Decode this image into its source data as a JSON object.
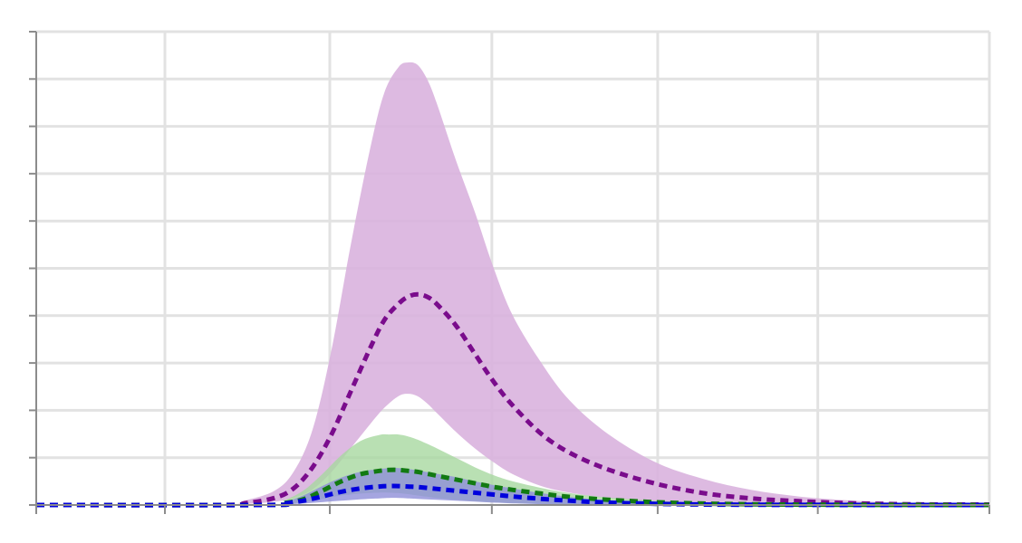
{
  "chart_data": {
    "type": "area",
    "title": "",
    "xlabel": "",
    "ylabel": "",
    "grid": true,
    "legend": "none",
    "xlim": [
      0,
      1000
    ],
    "ylim": [
      0,
      100
    ],
    "x_ticks": [
      0,
      135,
      308,
      478,
      652,
      820,
      1000
    ],
    "y_ticks": [
      0,
      10,
      20,
      30,
      40,
      50,
      60,
      70,
      80,
      90,
      100
    ],
    "colors": {
      "purple_line": "#7a0c8c",
      "purple_band": "#d9b3de",
      "green_line": "#127a12",
      "green_band": "#a8d8a0",
      "blue_line": "#0000dd",
      "blue_band": "#8f8fd8"
    },
    "series": [
      {
        "key": "purple",
        "style": "dashed",
        "x": [
          0,
          190,
          220,
          250,
          270,
          290,
          310,
          330,
          350,
          365,
          380,
          390,
          400,
          410,
          420,
          440,
          460,
          480,
          500,
          530,
          560,
          600,
          650,
          700,
          750,
          800,
          850,
          900,
          950,
          1000
        ],
        "mean": [
          0,
          0,
          0.4,
          1.5,
          3.5,
          8,
          15,
          24,
          33,
          39,
          42.5,
          44,
          44.5,
          44,
          42.5,
          38,
          32,
          26,
          21,
          15,
          11,
          7.5,
          4.5,
          2.5,
          1.4,
          0.8,
          0.4,
          0.2,
          0.1,
          0.1
        ],
        "low": [
          0,
          0,
          0.2,
          0.7,
          1.5,
          3.3,
          7,
          12,
          17,
          20.5,
          23,
          23.5,
          23,
          21.5,
          19.5,
          15.5,
          12,
          9,
          6.5,
          4,
          2.6,
          1.5,
          0.8,
          0.4,
          0.2,
          0.1,
          0.05,
          0,
          0,
          0
        ],
        "high": [
          0,
          0,
          1,
          3,
          7,
          16,
          33,
          55,
          75,
          87,
          92.5,
          93.5,
          93,
          90,
          85,
          73,
          62,
          50,
          40,
          30,
          22,
          15,
          9,
          5.5,
          3.2,
          1.8,
          1,
          0.5,
          0.2,
          0.1
        ]
      },
      {
        "key": "green",
        "style": "dashed",
        "x": [
          0,
          240,
          260,
          280,
          300,
          320,
          340,
          360,
          370,
          380,
          390,
          400,
          420,
          440,
          460,
          480,
          500,
          530,
          560,
          600,
          650,
          700,
          750,
          800,
          850,
          900,
          1000
        ],
        "mean": [
          0,
          0,
          0.4,
          1.2,
          3,
          5,
          6.5,
          7.2,
          7.4,
          7.4,
          7.2,
          7,
          6.2,
          5.4,
          4.6,
          3.8,
          3.2,
          2.4,
          1.7,
          1.1,
          0.6,
          0.3,
          0.15,
          0.08,
          0.05,
          0.02,
          0
        ],
        "low": [
          0,
          0,
          0.2,
          0.6,
          1.3,
          2,
          2.4,
          2.6,
          2.6,
          2.5,
          2.3,
          2,
          1.5,
          1.1,
          0.8,
          0.6,
          0.4,
          0.25,
          0.15,
          0.08,
          0.04,
          0.02,
          0,
          0,
          0,
          0,
          0
        ],
        "high": [
          0,
          0,
          1,
          3,
          6.5,
          10.5,
          13.5,
          14.8,
          14.9,
          14.9,
          14.5,
          13.8,
          12,
          10,
          8,
          6.3,
          5,
          3.6,
          2.5,
          1.6,
          0.9,
          0.45,
          0.2,
          0.1,
          0.05,
          0.02,
          0
        ]
      },
      {
        "key": "blue",
        "style": "dashed",
        "x": [
          0,
          240,
          260,
          280,
          300,
          320,
          340,
          360,
          370,
          380,
          390,
          400,
          420,
          440,
          460,
          480,
          500,
          530,
          560,
          600,
          650,
          700,
          750,
          800,
          900,
          1000
        ],
        "mean": [
          0,
          0,
          0.3,
          0.9,
          1.8,
          2.8,
          3.5,
          3.9,
          4,
          4,
          3.9,
          3.8,
          3.4,
          3,
          2.6,
          2.2,
          1.8,
          1.3,
          0.9,
          0.5,
          0.25,
          0.1,
          0.05,
          0.02,
          0,
          0
        ],
        "low": [
          0,
          0,
          0.1,
          0.3,
          0.6,
          0.9,
          1.2,
          1.4,
          1.5,
          1.5,
          1.4,
          1.3,
          1.1,
          0.9,
          0.7,
          0.5,
          0.35,
          0.2,
          0.1,
          0.05,
          0.02,
          0,
          0,
          0,
          0,
          0
        ],
        "high": [
          0,
          0,
          0.6,
          2,
          4,
          5.8,
          7,
          7.6,
          7.8,
          7.8,
          7.6,
          7.3,
          6.6,
          5.9,
          5,
          4.2,
          3.5,
          2.5,
          1.7,
          1,
          0.5,
          0.2,
          0.1,
          0.05,
          0,
          0
        ]
      }
    ]
  }
}
